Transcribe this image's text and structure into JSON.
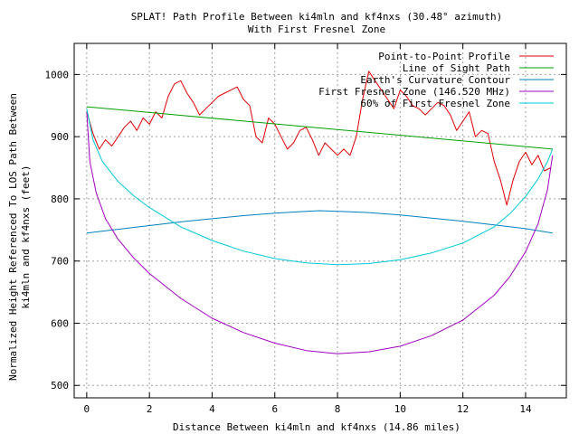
{
  "chart_data": {
    "type": "line",
    "title": "SPLAT! Path Profile Between ki4mln and kf4nxs (30.48° azimuth)",
    "subtitle": "With First Fresnel Zone",
    "xlabel": "Distance Between ki4mln and kf4nxs (14.86 miles)",
    "ylabel_line1": "Normalized Height Referenced To LOS Path Between",
    "ylabel_line2": "ki4mln and kf4nxs (feet)",
    "xlim": [
      -0.4,
      15.3
    ],
    "ylim": [
      480,
      1050
    ],
    "xticks": [
      0,
      2,
      4,
      6,
      8,
      10,
      12,
      14
    ],
    "yticks": [
      500,
      600,
      700,
      800,
      900,
      1000
    ],
    "grid": true,
    "legend_position": "top-right",
    "series": [
      {
        "name": "Point-to-Point Profile",
        "color": "#e00000",
        "x": [
          0.0,
          0.2,
          0.4,
          0.6,
          0.8,
          1.0,
          1.2,
          1.4,
          1.6,
          1.8,
          2.0,
          2.2,
          2.4,
          2.6,
          2.8,
          3.0,
          3.2,
          3.4,
          3.6,
          3.8,
          4.0,
          4.2,
          4.4,
          4.6,
          4.8,
          5.0,
          5.2,
          5.4,
          5.6,
          5.8,
          6.0,
          6.2,
          6.4,
          6.6,
          6.8,
          7.0,
          7.2,
          7.4,
          7.6,
          7.8,
          8.0,
          8.2,
          8.4,
          8.6,
          8.8,
          9.0,
          9.2,
          9.4,
          9.6,
          9.8,
          10.0,
          10.2,
          10.4,
          10.6,
          10.8,
          11.0,
          11.2,
          11.4,
          11.6,
          11.8,
          12.0,
          12.2,
          12.4,
          12.6,
          12.8,
          13.0,
          13.2,
          13.4,
          13.6,
          13.8,
          14.0,
          14.2,
          14.4,
          14.6,
          14.8
        ],
        "values": [
          940,
          905,
          880,
          895,
          885,
          900,
          915,
          925,
          910,
          930,
          920,
          940,
          930,
          965,
          985,
          990,
          970,
          955,
          935,
          945,
          955,
          965,
          970,
          975,
          980,
          960,
          950,
          900,
          890,
          930,
          920,
          900,
          880,
          890,
          910,
          915,
          895,
          870,
          890,
          880,
          870,
          880,
          870,
          900,
          960,
          1005,
          990,
          975,
          960,
          945,
          975,
          965,
          950,
          945,
          935,
          945,
          955,
          950,
          935,
          910,
          925,
          940,
          900,
          910,
          905,
          860,
          830,
          790,
          830,
          860,
          875,
          855,
          870,
          845,
          850
        ]
      },
      {
        "name": "Line of Sight Path",
        "color": "#00a000",
        "x": [
          0.0,
          14.86
        ],
        "values": [
          948,
          880
        ]
      },
      {
        "name": "Earth's Curvature Contour",
        "color": "#0080c0",
        "x": [
          0.0,
          1.0,
          2.0,
          3.0,
          4.0,
          5.0,
          6.0,
          7.0,
          7.43,
          8.0,
          9.0,
          10.0,
          11.0,
          12.0,
          13.0,
          14.0,
          14.86
        ],
        "values": [
          745,
          751,
          757,
          763,
          768,
          773,
          777,
          780,
          781,
          780,
          778,
          774,
          769,
          764,
          758,
          752,
          745
        ]
      },
      {
        "name": "First Fresnel Zone (146.520 MHz)",
        "color": "#a000c0",
        "x": [
          0.0,
          0.1,
          0.3,
          0.6,
          1.0,
          1.5,
          2.0,
          3.0,
          4.0,
          5.0,
          6.0,
          7.0,
          8.0,
          9.0,
          10.0,
          11.0,
          12.0,
          13.0,
          13.5,
          14.0,
          14.4,
          14.7,
          14.86
        ],
        "values": [
          940,
          860,
          810,
          768,
          735,
          705,
          680,
          640,
          608,
          585,
          568,
          556,
          551,
          554,
          563,
          580,
          605,
          645,
          675,
          715,
          760,
          815,
          870
        ]
      },
      {
        "name": "60% of First Fresnel Zone",
        "color": "#00c8d8",
        "x": [
          0.0,
          0.2,
          0.5,
          1.0,
          1.5,
          2.0,
          3.0,
          4.0,
          5.0,
          6.0,
          7.0,
          8.0,
          9.0,
          10.0,
          11.0,
          12.0,
          13.0,
          13.5,
          14.0,
          14.4,
          14.7,
          14.86
        ],
        "values": [
          945,
          895,
          860,
          828,
          805,
          786,
          755,
          733,
          716,
          704,
          697,
          694,
          696,
          702,
          713,
          729,
          755,
          776,
          804,
          832,
          860,
          880
        ]
      }
    ]
  }
}
